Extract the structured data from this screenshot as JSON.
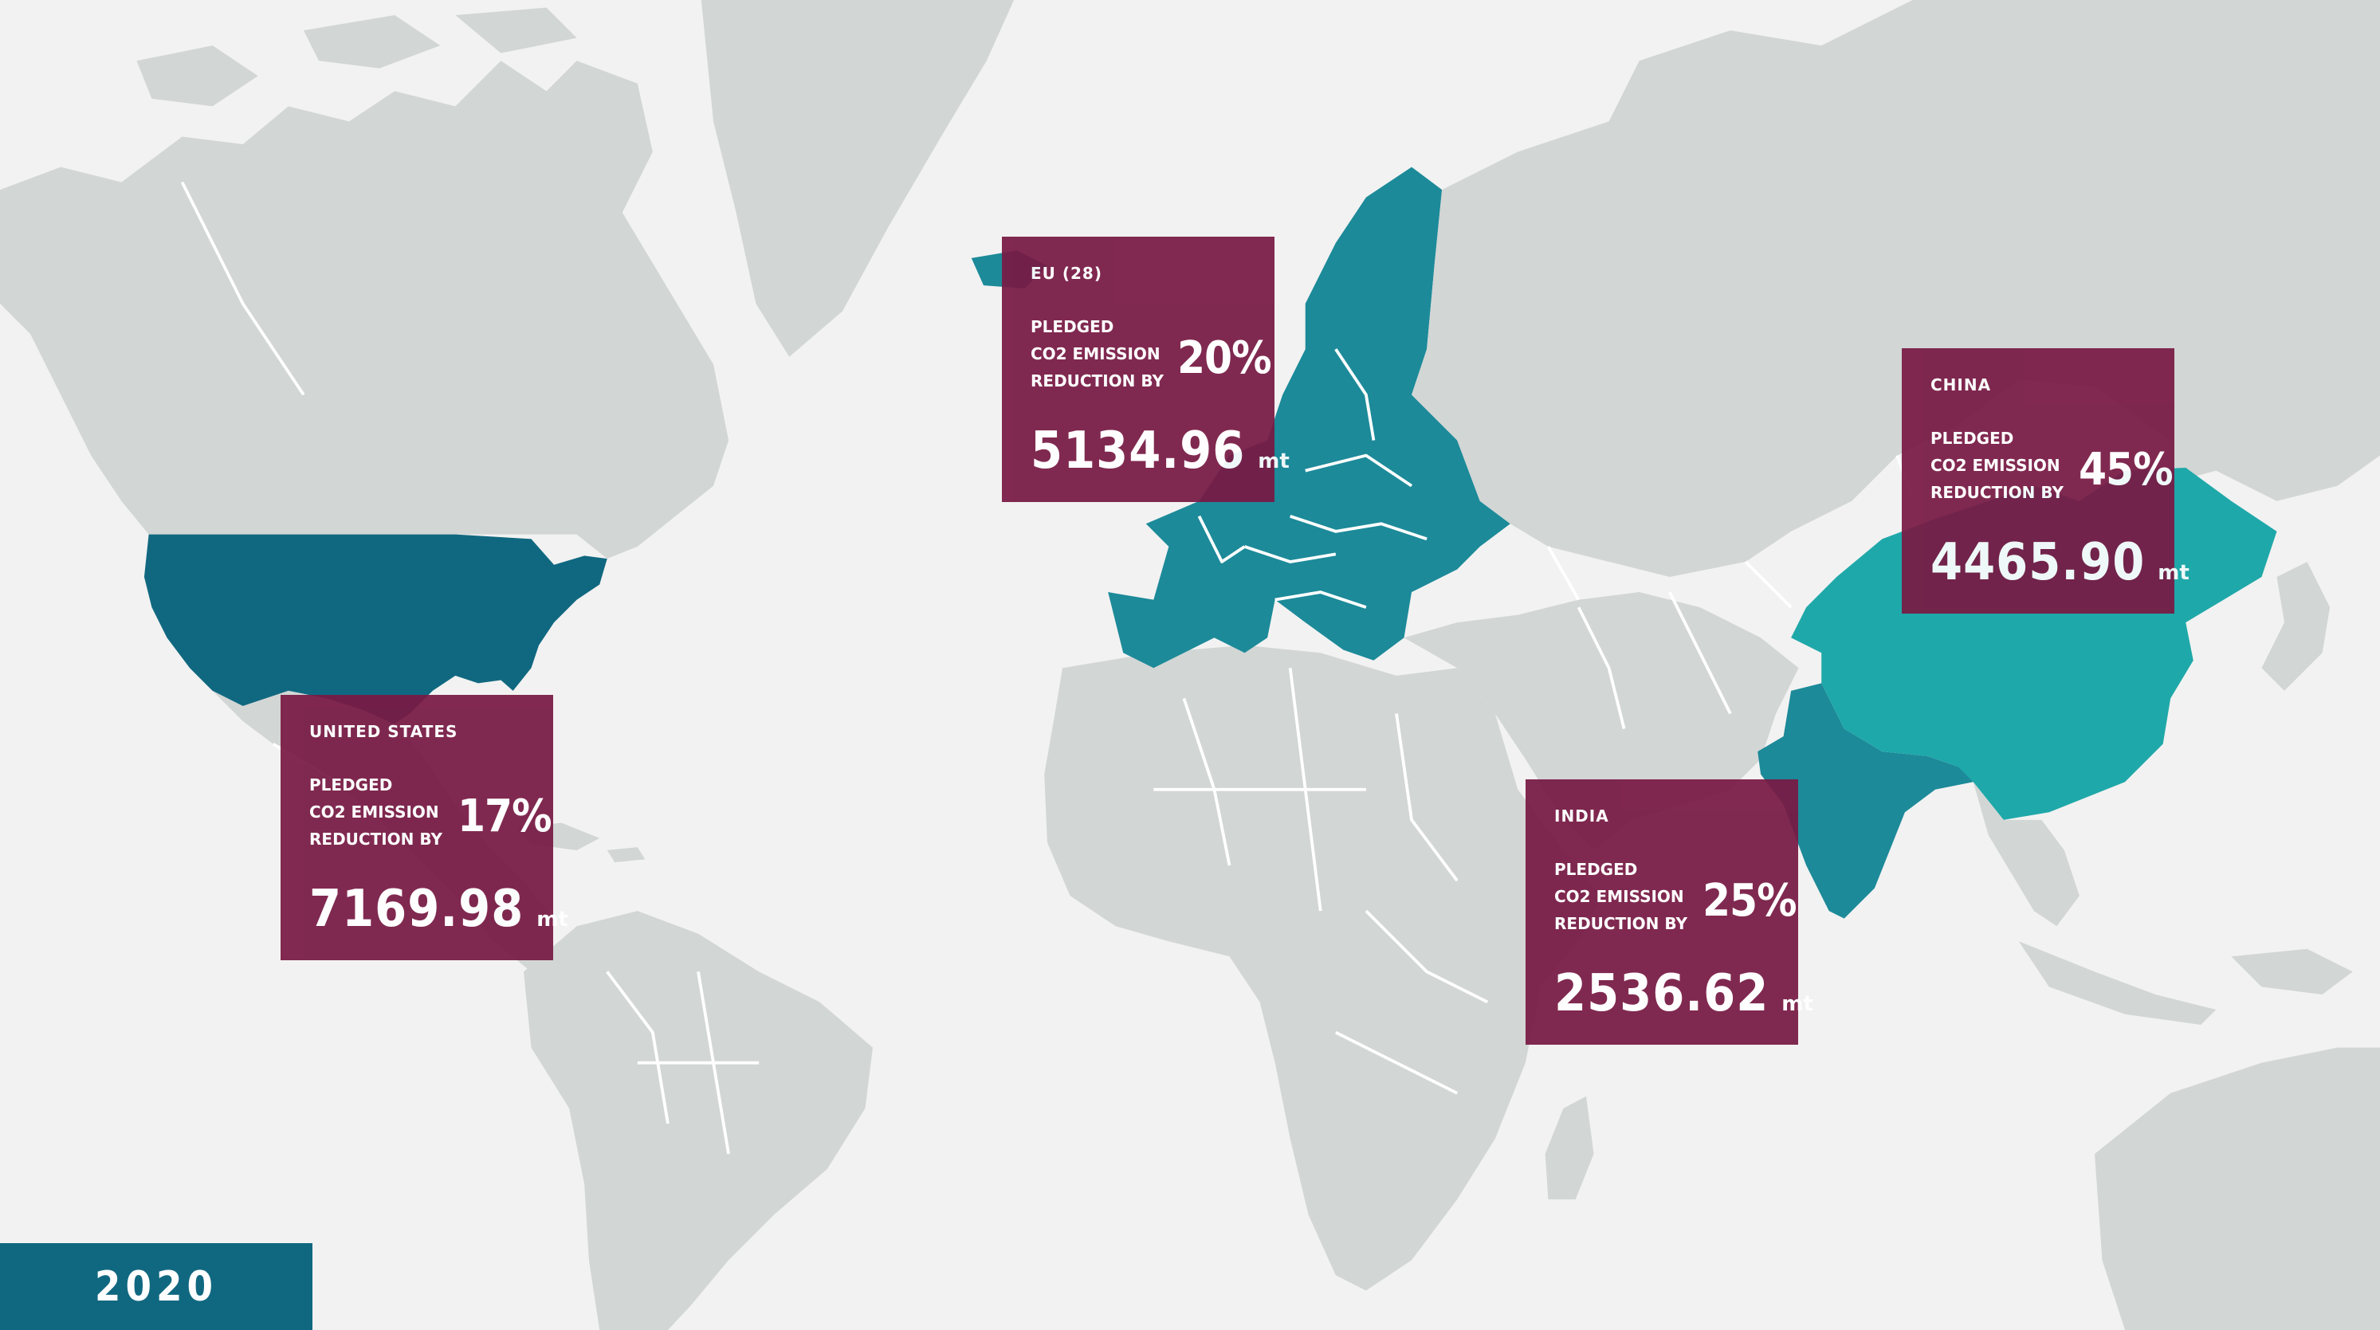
{
  "year": "2020",
  "colors": {
    "background": "#f2f2f2",
    "land": "#d2d6d5",
    "borders": "#ffffff",
    "united_states": "#106880",
    "eu": "#1c8a99",
    "india": "#1c8a99",
    "china": "#1fa8a9",
    "card_background": "#781a44",
    "year_box": "#106880",
    "text": "#ffffff"
  },
  "pledge_label": "PLEDGED CO2 EMISSION REDUCTION BY",
  "unit": "mt",
  "cards": [
    {
      "id": "eu",
      "region": "EU (28)",
      "pledge_line1": "PLEDGED",
      "pledge_line2": "CO2 EMISSION",
      "pledge_line3": "REDUCTION BY",
      "reduction": "20%",
      "emissions": "5134.96",
      "unit": "mt",
      "reduction_value": 20,
      "emissions_value": 5134.96
    },
    {
      "id": "china",
      "region": "CHINA",
      "pledge_line1": "PLEDGED",
      "pledge_line2": "CO2 EMISSION",
      "pledge_line3": "REDUCTION BY",
      "reduction": "45%",
      "emissions": "4465.90",
      "unit": "mt",
      "reduction_value": 45,
      "emissions_value": 4465.9
    },
    {
      "id": "us",
      "region": "UNITED STATES",
      "pledge_line1": "PLEDGED",
      "pledge_line2": "CO2 EMISSION",
      "pledge_line3": "REDUCTION BY",
      "reduction": "17%",
      "emissions": "7169.98",
      "unit": "mt",
      "reduction_value": 17,
      "emissions_value": 7169.98
    },
    {
      "id": "india",
      "region": "INDIA",
      "pledge_line1": "PLEDGED",
      "pledge_line2": "CO2 EMISSION",
      "pledge_line3": "REDUCTION BY",
      "reduction": "25%",
      "emissions": "2536.62",
      "unit": "mt",
      "reduction_value": 25,
      "emissions_value": 2536.62
    }
  ],
  "highlighted_regions": [
    "United States",
    "EU (28)",
    "China",
    "India"
  ]
}
